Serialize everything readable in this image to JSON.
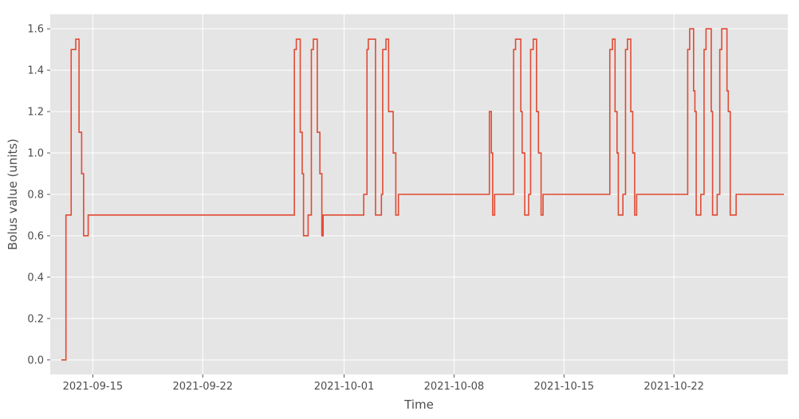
{
  "chart_data": {
    "type": "line",
    "step": "post",
    "xlabel": "Time",
    "ylabel": "Bolus value (units)",
    "title": "",
    "xlim": [
      "2021-09-12T07:00",
      "2021-10-29T06:00"
    ],
    "ylim": [
      -0.07,
      1.67
    ],
    "x_ticks": [
      "2021-09-15",
      "2021-09-22",
      "2021-10-01",
      "2021-10-08",
      "2021-10-15",
      "2021-10-22"
    ],
    "y_ticks": [
      0.0,
      0.2,
      0.4,
      0.6,
      0.8,
      1.0,
      1.2,
      1.4,
      1.6
    ],
    "y_tick_labels": [
      "0.0",
      "0.2",
      "0.4",
      "0.6",
      "0.8",
      "1.0",
      "1.2",
      "1.4",
      "1.6"
    ],
    "grid": true,
    "background": "#e5e5e5",
    "line_color": "#e24a33",
    "series": [
      {
        "x": [
          "2021-09-13T00:00",
          "2021-09-13T07:00",
          "2021-09-13T15:00",
          "2021-09-13T22:00",
          "2021-09-14T03:00",
          "2021-09-14T07:00",
          "2021-09-14T10:00",
          "2021-09-14T11:00",
          "2021-09-14T17:00",
          "2021-09-15T00:00",
          "2021-09-27T20:00",
          "2021-09-27T23:00",
          "2021-09-28T05:00",
          "2021-09-28T08:00",
          "2021-09-28T10:00",
          "2021-09-28T17:00",
          "2021-09-28T22:00",
          "2021-09-29T01:00",
          "2021-09-29T07:00",
          "2021-09-29T11:00",
          "2021-09-29T14:00",
          "2021-09-29T16:00",
          "2021-10-02T06:00",
          "2021-10-02T11:00",
          "2021-10-02T13:00",
          "2021-10-03T00:00",
          "2021-10-03T09:00",
          "2021-10-03T11:00",
          "2021-10-03T16:00",
          "2021-10-03T20:00",
          "2021-10-04T03:00",
          "2021-10-04T07:00",
          "2021-10-04T11:00",
          "2021-10-04T20:00",
          "2021-10-10T06:00",
          "2021-10-10T09:00",
          "2021-10-10T11:00",
          "2021-10-10T14:00",
          "2021-10-11T00:00",
          "2021-10-11T19:00",
          "2021-10-11T22:00",
          "2021-10-12T06:00",
          "2021-10-12T08:00",
          "2021-10-12T12:00",
          "2021-10-12T18:00",
          "2021-10-12T21:00",
          "2021-10-13T01:00",
          "2021-10-13T06:00",
          "2021-10-13T09:00",
          "2021-10-13T13:00",
          "2021-10-13T16:00",
          "2021-10-13T20:00",
          "2021-10-17T22:00",
          "2021-10-18T02:00",
          "2021-10-18T06:00",
          "2021-10-18T09:00",
          "2021-10-18T11:00",
          "2021-10-18T18:00",
          "2021-10-18T22:00",
          "2021-10-19T01:00",
          "2021-10-19T06:00",
          "2021-10-19T09:00",
          "2021-10-19T12:00",
          "2021-10-19T15:00",
          "2021-10-22T21:00",
          "2021-10-23T00:00",
          "2021-10-23T06:00",
          "2021-10-23T08:00",
          "2021-10-23T10:00",
          "2021-10-23T17:00",
          "2021-10-23T22:00",
          "2021-10-24T01:00",
          "2021-10-24T09:00",
          "2021-10-24T11:00",
          "2021-10-24T18:00",
          "2021-10-24T22:00",
          "2021-10-25T01:00",
          "2021-10-25T09:00",
          "2021-10-25T11:00",
          "2021-10-25T14:00",
          "2021-10-25T16:00",
          "2021-10-25T23:00",
          "2021-10-29T00:00"
        ],
        "y": [
          0.0,
          0.7,
          1.5,
          1.55,
          1.1,
          0.9,
          0.6,
          0.6,
          0.7,
          0.7,
          1.5,
          1.55,
          1.1,
          0.9,
          0.6,
          0.7,
          1.5,
          1.55,
          1.1,
          0.9,
          0.6,
          0.7,
          0.8,
          1.5,
          1.55,
          0.7,
          0.8,
          1.5,
          1.55,
          1.2,
          1.0,
          0.7,
          0.8,
          0.8,
          1.2,
          1.0,
          0.7,
          0.8,
          0.8,
          1.5,
          1.55,
          1.2,
          1.0,
          0.7,
          0.8,
          1.5,
          1.55,
          1.2,
          1.0,
          0.7,
          0.8,
          0.8,
          1.5,
          1.55,
          1.2,
          1.0,
          0.7,
          0.8,
          1.5,
          1.55,
          1.2,
          1.0,
          0.7,
          0.8,
          1.5,
          1.6,
          1.3,
          1.2,
          0.7,
          0.8,
          1.5,
          1.6,
          1.2,
          0.7,
          0.8,
          1.5,
          1.6,
          1.3,
          1.2,
          0.7,
          0.7,
          0.8,
          0.8
        ]
      }
    ]
  }
}
